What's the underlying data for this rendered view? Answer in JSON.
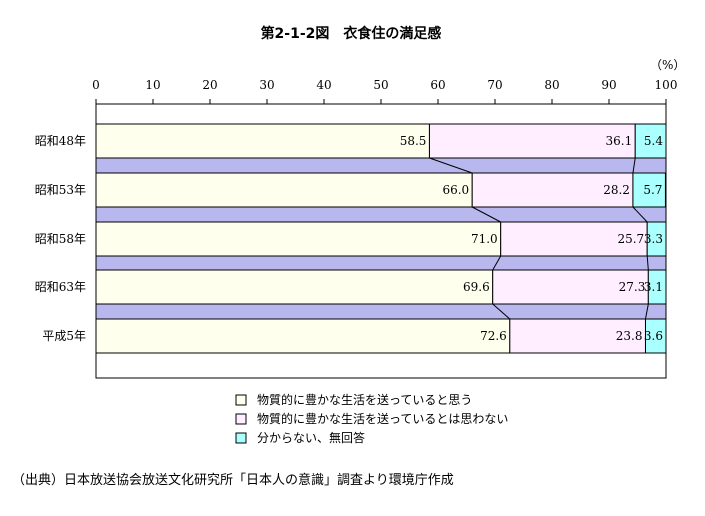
{
  "chart_data": {
    "type": "bar",
    "stacked": true,
    "orientation": "horizontal",
    "title": "第2-1-2図　衣食住の満足感",
    "unit_label": "（%）",
    "xlim": [
      0,
      100
    ],
    "xticks": [
      "0",
      "10",
      "20",
      "30",
      "40",
      "50",
      "60",
      "70",
      "80",
      "90",
      "100"
    ],
    "categories": [
      "昭和48年",
      "昭和53年",
      "昭和58年",
      "昭和63年",
      "平成5年"
    ],
    "series": [
      {
        "name": "物質的に豊かな生活を送っていると思う",
        "color": "#ffffee",
        "values": [
          58.5,
          66.0,
          71.0,
          69.6,
          72.6
        ],
        "labels": [
          "58.5",
          "66.0",
          "71.0",
          "69.6",
          "72.6"
        ]
      },
      {
        "name": "物質的に豊かな生活を送っているとは思わない",
        "color": "#ffeeff",
        "values": [
          36.1,
          28.2,
          25.7,
          27.3,
          23.8
        ],
        "labels": [
          "36.1",
          "28.2",
          "25.7",
          "27.3",
          "23.8"
        ]
      },
      {
        "name": "分からない、無回答",
        "color": "#aaffff",
        "values": [
          5.4,
          5.7,
          3.3,
          3.1,
          3.6
        ],
        "labels": [
          "5.4",
          "5.7",
          "3.3",
          "3.1",
          "3.6"
        ]
      }
    ],
    "connector_color": "#b8b8ee",
    "grid": false,
    "legend_position": "bottom-center"
  },
  "source_note": "（出典）日本放送協会放送文化研究所「日本人の意識」調査より環境庁作成"
}
